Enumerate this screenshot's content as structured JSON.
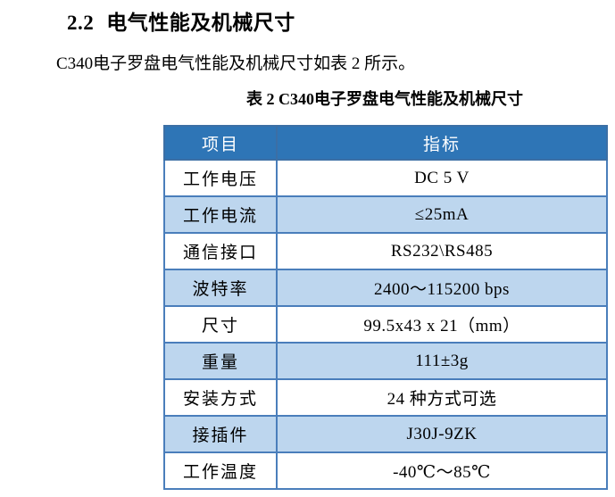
{
  "page": {
    "heading_number": "2.2",
    "heading_text": "电气性能及机械尺寸",
    "paragraph": "C340电子罗盘电气性能及机械尺寸如表 2 所示。",
    "table_caption": "表 2 C340电子罗盘电气性能及机械尺寸"
  },
  "colors": {
    "header_bg": "#2E75B6",
    "header_text": "#FFFFFF",
    "band_row_bg": "#BDD6EE",
    "table_border": "#4A7EBB"
  },
  "table": {
    "headers": [
      "项目",
      "指标"
    ],
    "rows": [
      {
        "item": "工作电压",
        "value": "DC 5 V"
      },
      {
        "item": "工作电流",
        "value": "≤25mA"
      },
      {
        "item": "通信接口",
        "value": "RS232\\RS485"
      },
      {
        "item": "波特率",
        "value": "2400～115200 bps"
      },
      {
        "item": "尺寸",
        "value": "99.5x43 x 21（mm）"
      },
      {
        "item": "重量",
        "value": "111±3g"
      },
      {
        "item": "安装方式",
        "value": "24 种方式可选"
      },
      {
        "item": "接插件",
        "value": "J30J-9ZK"
      },
      {
        "item": "工作温度",
        "value": "-40℃～85℃"
      }
    ]
  }
}
